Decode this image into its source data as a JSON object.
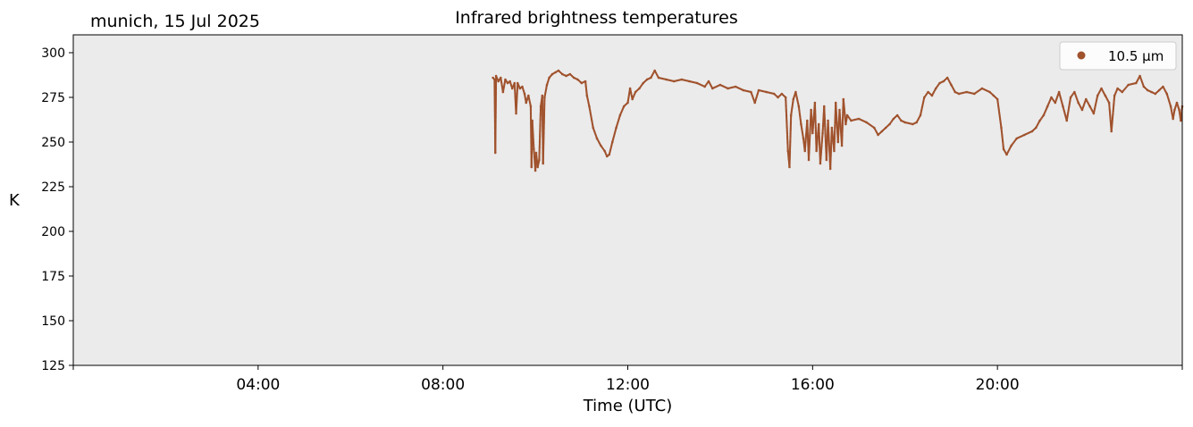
{
  "header": {
    "location_date": "munich, 15 Jul 2025"
  },
  "colors": {
    "series": "#a0522d",
    "plot_background": "#ebebeb"
  },
  "chart_data": {
    "type": "scatter",
    "title": "Infrared brightness temperatures",
    "xlabel": "Time (UTC)",
    "ylabel": "K",
    "xlim": [
      "00:00",
      "24:00"
    ],
    "ylim": [
      125,
      310
    ],
    "grid": false,
    "legend_position": "top-right",
    "x_ticks": [
      "04:00",
      "08:00",
      "12:00",
      "16:00",
      "20:00"
    ],
    "y_ticks": [
      125,
      150,
      175,
      200,
      225,
      250,
      275,
      300
    ],
    "series": [
      {
        "name": "10.5 µm",
        "marker": "dot",
        "color": "#a0522d",
        "points": [
          [
            "09:05",
            286
          ],
          [
            "09:07",
            285
          ],
          [
            "09:08",
            244
          ],
          [
            "09:09",
            287
          ],
          [
            "09:12",
            284
          ],
          [
            "09:15",
            286
          ],
          [
            "09:18",
            278
          ],
          [
            "09:21",
            285
          ],
          [
            "09:24",
            283
          ],
          [
            "09:27",
            284
          ],
          [
            "09:30",
            280
          ],
          [
            "09:33",
            283
          ],
          [
            "09:35",
            266
          ],
          [
            "09:37",
            283
          ],
          [
            "09:40",
            280
          ],
          [
            "09:43",
            281
          ],
          [
            "09:46",
            277
          ],
          [
            "09:48",
            272
          ],
          [
            "09:51",
            276
          ],
          [
            "09:54",
            270
          ],
          [
            "09:55",
            236
          ],
          [
            "09:56",
            262
          ],
          [
            "09:58",
            246
          ],
          [
            "10:00",
            234
          ],
          [
            "10:01",
            244
          ],
          [
            "10:03",
            236
          ],
          [
            "10:05",
            240
          ],
          [
            "10:07",
            270
          ],
          [
            "10:09",
            276
          ],
          [
            "10:10",
            238
          ],
          [
            "10:12",
            275
          ],
          [
            "10:15",
            282
          ],
          [
            "10:18",
            286
          ],
          [
            "10:22",
            288
          ],
          [
            "10:26",
            289
          ],
          [
            "10:30",
            290
          ],
          [
            "10:35",
            288
          ],
          [
            "10:40",
            287
          ],
          [
            "10:45",
            288
          ],
          [
            "10:50",
            286
          ],
          [
            "10:55",
            285
          ],
          [
            "11:00",
            283
          ],
          [
            "11:05",
            284
          ],
          [
            "11:07",
            276
          ],
          [
            "11:10",
            270
          ],
          [
            "11:15",
            258
          ],
          [
            "11:20",
            252
          ],
          [
            "11:25",
            248
          ],
          [
            "11:30",
            245
          ],
          [
            "11:33",
            242
          ],
          [
            "11:36",
            243
          ],
          [
            "11:40",
            250
          ],
          [
            "11:45",
            258
          ],
          [
            "11:50",
            265
          ],
          [
            "11:55",
            270
          ],
          [
            "12:00",
            272
          ],
          [
            "12:03",
            280
          ],
          [
            "12:06",
            274
          ],
          [
            "12:10",
            278
          ],
          [
            "12:15",
            280
          ],
          [
            "12:20",
            283
          ],
          [
            "12:25",
            285
          ],
          [
            "12:30",
            286
          ],
          [
            "12:35",
            290
          ],
          [
            "12:40",
            286
          ],
          [
            "12:50",
            285
          ],
          [
            "13:00",
            284
          ],
          [
            "13:10",
            285
          ],
          [
            "13:20",
            284
          ],
          [
            "13:30",
            283
          ],
          [
            "13:40",
            281
          ],
          [
            "13:45",
            284
          ],
          [
            "13:50",
            280
          ],
          [
            "14:00",
            282
          ],
          [
            "14:10",
            280
          ],
          [
            "14:20",
            281
          ],
          [
            "14:30",
            279
          ],
          [
            "14:40",
            278
          ],
          [
            "14:45",
            272
          ],
          [
            "14:50",
            279
          ],
          [
            "15:00",
            278
          ],
          [
            "15:10",
            277
          ],
          [
            "15:15",
            275
          ],
          [
            "15:20",
            277
          ],
          [
            "15:25",
            275
          ],
          [
            "15:28",
            245
          ],
          [
            "15:30",
            236
          ],
          [
            "15:32",
            265
          ],
          [
            "15:35",
            274
          ],
          [
            "15:38",
            278
          ],
          [
            "15:42",
            270
          ],
          [
            "15:45",
            260
          ],
          [
            "15:48",
            252
          ],
          [
            "15:50",
            245
          ],
          [
            "15:53",
            262
          ],
          [
            "15:55",
            240
          ],
          [
            "15:58",
            268
          ],
          [
            "16:00",
            255
          ],
          [
            "16:03",
            272
          ],
          [
            "16:05",
            245
          ],
          [
            "16:08",
            260
          ],
          [
            "16:10",
            238
          ],
          [
            "16:13",
            255
          ],
          [
            "16:15",
            270
          ],
          [
            "16:18",
            240
          ],
          [
            "16:20",
            262
          ],
          [
            "16:23",
            235
          ],
          [
            "16:25",
            258
          ],
          [
            "16:28",
            245
          ],
          [
            "16:30",
            272
          ],
          [
            "16:33",
            250
          ],
          [
            "16:35",
            268
          ],
          [
            "16:38",
            248
          ],
          [
            "16:40",
            274
          ],
          [
            "16:43",
            260
          ],
          [
            "16:45",
            265
          ],
          [
            "16:50",
            262
          ],
          [
            "17:00",
            263
          ],
          [
            "17:10",
            261
          ],
          [
            "17:20",
            258
          ],
          [
            "17:25",
            254
          ],
          [
            "17:30",
            256
          ],
          [
            "17:35",
            258
          ],
          [
            "17:40",
            260
          ],
          [
            "17:45",
            263
          ],
          [
            "17:50",
            265
          ],
          [
            "17:55",
            262
          ],
          [
            "18:00",
            261
          ],
          [
            "18:10",
            260
          ],
          [
            "18:15",
            261
          ],
          [
            "18:20",
            265
          ],
          [
            "18:25",
            275
          ],
          [
            "18:30",
            278
          ],
          [
            "18:35",
            276
          ],
          [
            "18:40",
            280
          ],
          [
            "18:45",
            283
          ],
          [
            "18:50",
            284
          ],
          [
            "18:55",
            286
          ],
          [
            "19:00",
            282
          ],
          [
            "19:05",
            278
          ],
          [
            "19:10",
            277
          ],
          [
            "19:20",
            278
          ],
          [
            "19:30",
            277
          ],
          [
            "19:40",
            280
          ],
          [
            "19:50",
            278
          ],
          [
            "19:55",
            276
          ],
          [
            "20:00",
            274
          ],
          [
            "20:05",
            258
          ],
          [
            "20:08",
            246
          ],
          [
            "20:12",
            243
          ],
          [
            "20:18",
            248
          ],
          [
            "20:25",
            252
          ],
          [
            "20:35",
            254
          ],
          [
            "20:45",
            256
          ],
          [
            "20:50",
            258
          ],
          [
            "20:55",
            262
          ],
          [
            "21:00",
            265
          ],
          [
            "21:05",
            270
          ],
          [
            "21:10",
            275
          ],
          [
            "21:15",
            272
          ],
          [
            "21:20",
            278
          ],
          [
            "21:25",
            270
          ],
          [
            "21:30",
            262
          ],
          [
            "21:35",
            275
          ],
          [
            "21:40",
            278
          ],
          [
            "21:45",
            272
          ],
          [
            "21:50",
            268
          ],
          [
            "21:55",
            274
          ],
          [
            "22:00",
            270
          ],
          [
            "22:05",
            266
          ],
          [
            "22:10",
            276
          ],
          [
            "22:15",
            280
          ],
          [
            "22:20",
            276
          ],
          [
            "22:25",
            272
          ],
          [
            "22:28",
            256
          ],
          [
            "22:32",
            276
          ],
          [
            "22:36",
            280
          ],
          [
            "22:42",
            278
          ],
          [
            "22:50",
            282
          ],
          [
            "23:00",
            283
          ],
          [
            "23:05",
            287
          ],
          [
            "23:10",
            281
          ],
          [
            "23:15",
            279
          ],
          [
            "23:20",
            278
          ],
          [
            "23:25",
            277
          ],
          [
            "23:30",
            279
          ],
          [
            "23:35",
            281
          ],
          [
            "23:40",
            277
          ],
          [
            "23:45",
            270
          ],
          [
            "23:48",
            263
          ],
          [
            "23:50",
            268
          ],
          [
            "23:53",
            272
          ],
          [
            "23:56",
            268
          ],
          [
            "23:58",
            262
          ],
          [
            "24:00",
            270
          ]
        ]
      }
    ]
  }
}
